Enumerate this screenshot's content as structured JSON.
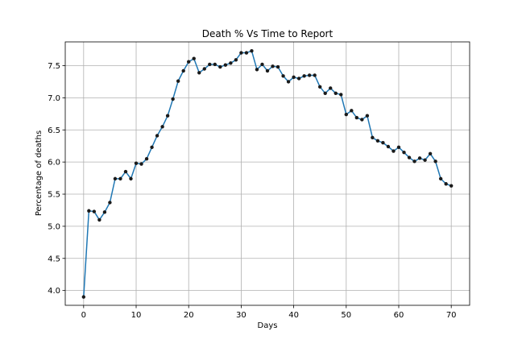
{
  "chart_data": {
    "type": "line",
    "title": "Death % Vs Time to Report",
    "xlabel": "Days",
    "ylabel": "Percentage of deaths",
    "xlim": [
      -3.5,
      73.5
    ],
    "ylim": [
      3.77,
      7.87
    ],
    "xticks": [
      0,
      10,
      20,
      30,
      40,
      50,
      60,
      70
    ],
    "yticks": [
      4.0,
      4.5,
      5.0,
      5.5,
      6.0,
      6.5,
      7.0,
      7.5
    ],
    "ytick_labels": [
      "4.0",
      "4.5",
      "5.0",
      "5.5",
      "6.0",
      "6.5",
      "7.0",
      "7.5"
    ],
    "grid": true,
    "line_color": "#1f77b4",
    "marker_color": "#1a1a1a",
    "x": [
      0,
      1,
      2,
      3,
      4,
      5,
      6,
      7,
      8,
      9,
      10,
      11,
      12,
      13,
      14,
      15,
      16,
      17,
      18,
      19,
      20,
      21,
      22,
      23,
      24,
      25,
      26,
      27,
      28,
      29,
      30,
      31,
      32,
      33,
      34,
      35,
      36,
      37,
      38,
      39,
      40,
      41,
      42,
      43,
      44,
      45,
      46,
      47,
      48,
      49,
      50,
      51,
      52,
      53,
      54,
      55,
      56,
      57,
      58,
      59,
      60,
      61,
      62,
      63,
      64,
      65,
      66,
      67,
      68,
      69,
      70
    ],
    "values": [
      3.9,
      5.24,
      5.23,
      5.1,
      5.22,
      5.37,
      5.74,
      5.74,
      5.85,
      5.74,
      5.98,
      5.97,
      6.05,
      6.23,
      6.41,
      6.55,
      6.72,
      6.98,
      7.26,
      7.42,
      7.56,
      7.61,
      7.39,
      7.45,
      7.52,
      7.52,
      7.48,
      7.51,
      7.54,
      7.59,
      7.7,
      7.7,
      7.73,
      7.44,
      7.52,
      7.42,
      7.49,
      7.48,
      7.34,
      7.25,
      7.32,
      7.3,
      7.34,
      7.35,
      7.35,
      7.17,
      7.07,
      7.15,
      7.07,
      7.05,
      6.74,
      6.8,
      6.69,
      6.66,
      6.72,
      6.38,
      6.33,
      6.3,
      6.24,
      6.17,
      6.23,
      6.15,
      6.07,
      6.01,
      6.06,
      6.03,
      6.13,
      6.01,
      5.74,
      5.66,
      5.63
    ]
  }
}
